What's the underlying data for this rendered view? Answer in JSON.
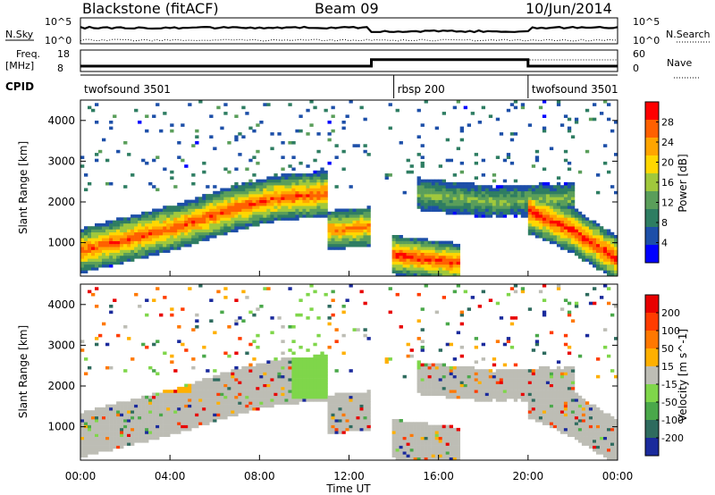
{
  "header": {
    "radar": "Blackstone (fitACF)",
    "beam": "Beam 09",
    "date": "10/Jun/2014"
  },
  "summary": {
    "nsky_label": "N.Sky",
    "nsearch_label": "N.Search",
    "freq_label": "Freq.",
    "freq_unit": "[MHz]",
    "nave_label": "Nave",
    "cpid_label": "CPID",
    "left_ticks_top": [
      "10^5",
      "10^0"
    ],
    "right_ticks_top": [
      "10^5",
      "10^0"
    ],
    "freq_ticks": [
      "18",
      "8"
    ],
    "nave_ticks": [
      "60",
      "0"
    ],
    "cpid_segments": [
      {
        "label": "twofsound 3501",
        "start_hour": 0,
        "end_hour": 14
      },
      {
        "label": "rbsp 200",
        "start_hour": 14,
        "end_hour": 20
      },
      {
        "label": "twofsound 3501",
        "start_hour": 20,
        "end_hour": 24
      }
    ],
    "freq_series": {
      "hours": [
        0,
        13,
        13,
        20,
        20,
        24
      ],
      "mhz": [
        10.5,
        10.5,
        13.5,
        13.5,
        10.5,
        10.5
      ]
    }
  },
  "chart_data": [
    {
      "type": "heatmap",
      "title": "Power",
      "xlabel": "",
      "ylabel": "Slant Range [km]",
      "xlim": [
        0,
        24
      ],
      "ylim": [
        180,
        4500
      ],
      "yticks": [
        1000,
        2000,
        3000,
        4000
      ],
      "colorbar_label": "Power [dB]",
      "colorbar_ticks": [
        "28",
        "24",
        "20",
        "16",
        "12",
        "8",
        "4"
      ],
      "colorbar_range": [
        0,
        30
      ],
      "colorbar_colors": [
        "#0000ff",
        "#1d4fa8",
        "#2e7d62",
        "#5a9e5a",
        "#a0c83c",
        "#ffd700",
        "#ffa500",
        "#ff6000",
        "#ff0000"
      ],
      "features": [
        {
          "kind": "band",
          "start_hour": 0,
          "end_hour": 11,
          "center_km": [
            800,
            1100,
            1400,
            1800,
            2100,
            2200
          ],
          "width_km": 350,
          "intensity_db": 24
        },
        {
          "kind": "band",
          "start_hour": 11,
          "end_hour": 13,
          "center_km": [
            1300,
            1400
          ],
          "width_km": 300,
          "intensity_db": 22
        },
        {
          "kind": "band",
          "start_hour": 14,
          "end_hour": 17,
          "center_km": [
            700,
            500
          ],
          "width_km": 300,
          "intensity_db": 26
        },
        {
          "kind": "band",
          "start_hour": 20,
          "end_hour": 24,
          "center_km": [
            1800,
            1300,
            600
          ],
          "width_km": 350,
          "intensity_db": 26
        },
        {
          "kind": "band",
          "start_hour": 15,
          "end_hour": 22,
          "center_km": [
            2200,
            2000,
            2100
          ],
          "width_km": 250,
          "intensity_db": 12
        }
      ]
    },
    {
      "type": "heatmap",
      "title": "Velocity",
      "xlabel": "Time UT",
      "ylabel": "Slant Range [km]",
      "xlim": [
        0,
        24
      ],
      "ylim": [
        180,
        4500
      ],
      "yticks": [
        1000,
        2000,
        3000,
        4000
      ],
      "xticks": [
        "00:00",
        "04:00",
        "08:00",
        "12:00",
        "16:00",
        "20:00",
        "00:00"
      ],
      "colorbar_label": "Velocity [m s^-1]",
      "colorbar_ticks": [
        "200",
        "100",
        "50",
        "15",
        "-15",
        "-50",
        "-100",
        "-200"
      ],
      "colorbar_colors": [
        "#1a2a9c",
        "#2e6b5e",
        "#4aa84a",
        "#7fd64a",
        "#bdbdb5",
        "#ffb000",
        "#ff7800",
        "#ff3c00",
        "#e80000"
      ]
    }
  ]
}
